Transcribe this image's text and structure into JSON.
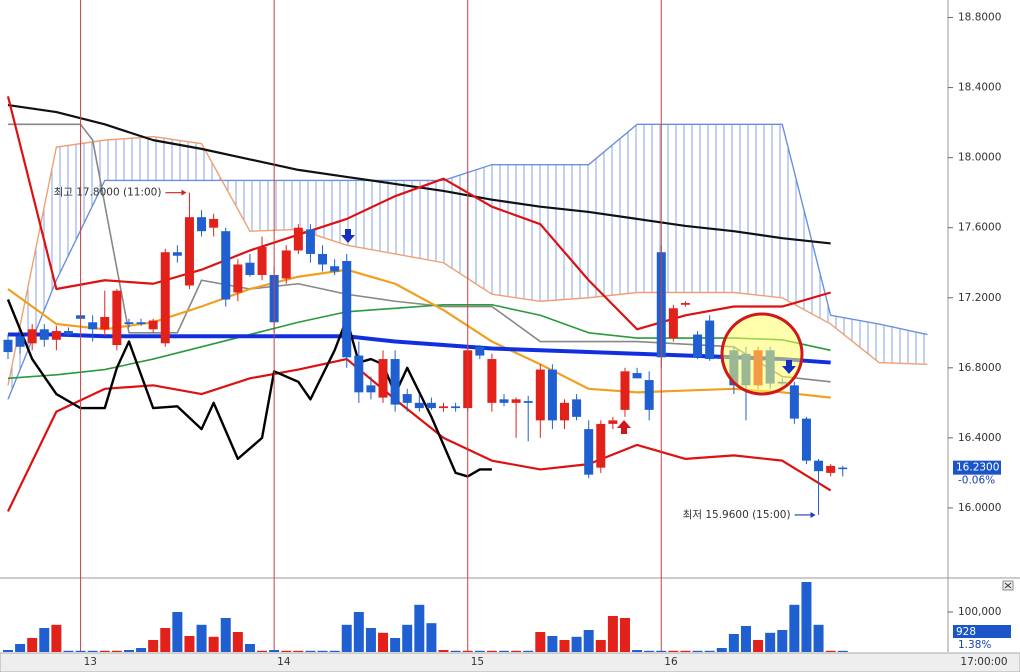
{
  "chart_data": [
    {
      "type": "candlestick",
      "xlim": [
        -0.66,
        77.7
      ],
      "ylim": [
        15.6,
        18.9
      ],
      "yticks": [
        {
          "value": 16.0,
          "label": "16.0000"
        },
        {
          "value": 16.4,
          "label": "16.4000"
        },
        {
          "value": 16.8,
          "label": "16.8000"
        },
        {
          "value": 17.2,
          "label": "17.2000"
        },
        {
          "value": 17.6,
          "label": "17.6000"
        },
        {
          "value": 18.0,
          "label": "18.0000"
        },
        {
          "value": 18.4,
          "label": "18.4000"
        },
        {
          "value": 18.8,
          "label": "18.8000"
        }
      ],
      "xticks": [
        {
          "value": 6,
          "label": "13"
        },
        {
          "value": 22,
          "label": "14"
        },
        {
          "value": 38,
          "label": "15"
        },
        {
          "value": 54,
          "label": "16"
        }
      ],
      "time_label": "17:00:00",
      "up_color": "#e3211b",
      "down_color": "#1f5fd0",
      "day_line_color": "#d04040",
      "x": [
        0,
        1,
        2,
        3,
        4,
        5,
        6,
        7,
        8,
        9,
        10,
        11,
        12,
        13,
        14,
        15,
        16,
        17,
        18,
        19,
        20,
        21,
        22,
        23,
        24,
        25,
        26,
        27,
        28,
        29,
        30,
        31,
        32,
        33,
        34,
        35,
        36,
        37,
        38,
        39,
        40,
        41,
        42,
        43,
        44,
        45,
        46,
        47,
        48,
        49,
        50,
        51,
        52,
        53,
        54,
        55,
        56,
        57,
        58,
        59,
        60,
        61,
        62,
        63,
        64,
        65,
        66,
        67,
        68,
        69
      ],
      "open": [
        16.96,
        16.98,
        16.94,
        17.02,
        16.96,
        17.01,
        17.1,
        17.06,
        17.02,
        16.93,
        17.06,
        17.06,
        17.02,
        16.94,
        17.46,
        17.27,
        17.66,
        17.6,
        17.58,
        17.23,
        17.4,
        17.33,
        17.33,
        17.31,
        17.47,
        17.59,
        17.45,
        17.38,
        17.41,
        16.87,
        16.7,
        16.63,
        16.85,
        16.65,
        16.6,
        16.6,
        16.57,
        16.58,
        16.57,
        16.92,
        16.6,
        16.62,
        16.6,
        16.61,
        16.5,
        16.79,
        16.5,
        16.62,
        16.45,
        16.23,
        16.48,
        16.56,
        16.77,
        16.73,
        17.46,
        16.97,
        17.16,
        16.99,
        17.07,
        16.86,
        16.9,
        16.88,
        16.7,
        16.9,
        16.72,
        16.7,
        16.51,
        16.27,
        16.2,
        16.23
      ],
      "high": [
        16.99,
        17.0,
        17.05,
        17.05,
        17.04,
        17.03,
        17.12,
        17.1,
        17.24,
        17.25,
        17.08,
        17.08,
        17.08,
        17.48,
        17.5,
        17.8,
        17.7,
        17.68,
        17.6,
        17.42,
        17.45,
        17.55,
        17.38,
        17.5,
        17.62,
        17.62,
        17.5,
        17.42,
        17.45,
        16.95,
        16.75,
        16.9,
        16.9,
        16.68,
        16.65,
        16.63,
        16.6,
        16.6,
        16.92,
        16.93,
        16.88,
        16.65,
        16.63,
        16.64,
        16.82,
        16.82,
        16.62,
        16.65,
        16.5,
        16.5,
        16.52,
        16.8,
        16.8,
        16.78,
        17.5,
        17.16,
        17.18,
        17.01,
        17.1,
        16.88,
        16.92,
        16.92,
        16.92,
        16.92,
        16.74,
        16.72,
        16.52,
        16.28,
        16.25,
        16.24
      ],
      "low": [
        16.85,
        16.88,
        16.9,
        16.92,
        16.9,
        16.98,
        17.07,
        16.95,
        16.98,
        16.9,
        17.03,
        17.04,
        17.0,
        16.92,
        17.4,
        17.25,
        17.55,
        17.55,
        17.15,
        17.18,
        17.32,
        17.3,
        17.0,
        17.28,
        17.45,
        17.4,
        17.35,
        17.33,
        16.8,
        16.6,
        16.62,
        16.6,
        16.55,
        16.55,
        16.55,
        16.56,
        16.55,
        16.55,
        16.55,
        16.85,
        16.55,
        16.58,
        16.4,
        16.38,
        16.4,
        16.45,
        16.45,
        16.5,
        16.17,
        16.2,
        16.45,
        16.52,
        16.74,
        16.5,
        16.8,
        16.95,
        17.15,
        16.85,
        16.84,
        16.83,
        16.65,
        16.5,
        16.68,
        16.68,
        16.7,
        16.48,
        16.25,
        15.96,
        16.18,
        16.18
      ],
      "close": [
        16.89,
        16.92,
        17.02,
        16.96,
        17.01,
        16.99,
        17.08,
        17.02,
        17.09,
        17.24,
        17.05,
        17.05,
        17.07,
        17.46,
        17.44,
        17.66,
        17.58,
        17.65,
        17.19,
        17.39,
        17.33,
        17.49,
        17.06,
        17.47,
        17.6,
        17.45,
        17.39,
        17.35,
        16.86,
        16.66,
        16.66,
        16.85,
        16.59,
        16.6,
        16.57,
        16.57,
        16.58,
        16.57,
        16.9,
        16.87,
        16.85,
        16.6,
        16.62,
        16.6,
        16.79,
        16.5,
        16.6,
        16.52,
        16.19,
        16.48,
        16.5,
        16.78,
        16.74,
        16.56,
        16.86,
        17.14,
        17.17,
        16.86,
        16.85,
        16.85,
        16.7,
        16.7,
        16.9,
        16.71,
        16.71,
        16.51,
        16.27,
        16.21,
        16.24,
        16.23
      ],
      "cloud": {
        "color": "#6a8fe0",
        "x": [
          0,
          4,
          8,
          12,
          16,
          20,
          24,
          28,
          32,
          36,
          40,
          44,
          48,
          52,
          56,
          60,
          64,
          68,
          72,
          76
        ],
        "span_a": [
          16.62,
          17.3,
          17.87,
          17.87,
          17.87,
          17.87,
          17.87,
          17.87,
          17.87,
          17.87,
          17.96,
          17.96,
          17.96,
          18.19,
          18.19,
          18.19,
          18.19,
          17.1,
          17.05,
          16.99
        ],
        "span_b": [
          16.7,
          18.06,
          18.1,
          18.12,
          18.08,
          17.58,
          17.59,
          17.5,
          17.45,
          17.4,
          17.22,
          17.18,
          17.2,
          17.23,
          17.23,
          17.23,
          17.2,
          17.05,
          16.83,
          16.82
        ],
        "span_a_color": "#6a8fe0",
        "span_b_color": "#f0a070"
      },
      "lines": [
        {
          "color": "#111111",
          "width": 2.2,
          "x": [
            0,
            4,
            8,
            12,
            16,
            20,
            24,
            28,
            32,
            36,
            40,
            44,
            48,
            52,
            56,
            60,
            64,
            68
          ],
          "values": [
            18.3,
            18.26,
            18.19,
            18.1,
            18.05,
            17.99,
            17.93,
            17.89,
            17.85,
            17.81,
            17.76,
            17.72,
            17.69,
            17.65,
            17.61,
            17.58,
            17.54,
            17.51
          ]
        },
        {
          "color": "#888888",
          "width": 1.6,
          "x": [
            0,
            6,
            7,
            10,
            14,
            16,
            20,
            24,
            28,
            32,
            36,
            40,
            42,
            44,
            52,
            60,
            64,
            68
          ],
          "values": [
            18.19,
            18.19,
            18.1,
            17.0,
            17.0,
            17.3,
            17.25,
            17.28,
            17.22,
            17.18,
            17.15,
            17.15,
            17.05,
            16.95,
            16.95,
            16.92,
            16.75,
            16.72
          ]
        },
        {
          "color": "#2a9a3a",
          "width": 1.6,
          "x": [
            0,
            4,
            8,
            12,
            16,
            20,
            24,
            28,
            32,
            36,
            40,
            44,
            48,
            52,
            56,
            60,
            64,
            68
          ],
          "values": [
            16.74,
            16.76,
            16.79,
            16.85,
            16.92,
            16.99,
            17.06,
            17.12,
            17.14,
            17.16,
            17.16,
            17.1,
            17.0,
            16.97,
            16.97,
            16.97,
            16.96,
            16.9
          ]
        },
        {
          "color": "#f0a020",
          "width": 2.2,
          "x": [
            0,
            4,
            8,
            12,
            16,
            20,
            24,
            28,
            32,
            36,
            40,
            44,
            48,
            52,
            56,
            60,
            64,
            68
          ],
          "values": [
            17.25,
            17.05,
            17.02,
            17.06,
            17.15,
            17.25,
            17.32,
            17.36,
            17.28,
            17.13,
            16.95,
            16.82,
            16.68,
            16.66,
            16.67,
            16.68,
            16.66,
            16.63
          ]
        },
        {
          "color": "#dd1111",
          "width": 2.2,
          "x": [
            0,
            4,
            8,
            12,
            16,
            20,
            24,
            28,
            32,
            36,
            40,
            44,
            48,
            52,
            56,
            60,
            64,
            68
          ],
          "values": [
            18.35,
            17.25,
            17.3,
            17.28,
            17.36,
            17.47,
            17.56,
            17.65,
            17.78,
            17.88,
            17.72,
            17.62,
            17.3,
            17.02,
            17.1,
            17.15,
            17.15,
            17.23
          ]
        },
        {
          "color": "#dd1111",
          "width": 2.2,
          "x": [
            0,
            4,
            8,
            12,
            16,
            20,
            24,
            28,
            32,
            36,
            40,
            44,
            48,
            52,
            56,
            60,
            64,
            68
          ],
          "values": [
            15.98,
            16.55,
            16.68,
            16.7,
            16.65,
            16.74,
            16.79,
            16.85,
            16.62,
            16.4,
            16.27,
            16.22,
            16.25,
            16.36,
            16.28,
            16.3,
            16.27,
            16.1
          ]
        },
        {
          "color": "#1030e0",
          "width": 4,
          "x": [
            0,
            4,
            8,
            12,
            16,
            20,
            24,
            28,
            32,
            36,
            40,
            44,
            48,
            52,
            56,
            60,
            64,
            68
          ],
          "values": [
            16.99,
            16.99,
            16.98,
            16.98,
            16.98,
            16.98,
            16.98,
            16.98,
            16.95,
            16.93,
            16.91,
            16.9,
            16.89,
            16.88,
            16.87,
            16.86,
            16.85,
            16.83
          ]
        },
        {
          "color": "#000000",
          "width": 2.4,
          "x": [
            0,
            2,
            4,
            6,
            8,
            9,
            10,
            12,
            14,
            16,
            17,
            19,
            21,
            22,
            24,
            25,
            27,
            28,
            29,
            30,
            31,
            32,
            33,
            35,
            37,
            38,
            39,
            40
          ],
          "values": [
            17.19,
            16.85,
            16.65,
            16.57,
            16.57,
            16.8,
            16.95,
            16.57,
            16.58,
            16.45,
            16.6,
            16.28,
            16.4,
            16.78,
            16.72,
            16.62,
            16.9,
            17.08,
            16.83,
            16.85,
            16.82,
            16.65,
            16.8,
            16.52,
            16.2,
            16.18,
            16.22,
            16.22
          ]
        }
      ],
      "annotations": [
        {
          "text": "최고 17.8000 (11:00)",
          "x": 15,
          "y": 17.8,
          "color": "#d02020"
        },
        {
          "text": "최저 15.9600 (15:00)",
          "x": 67,
          "y": 15.96,
          "color": "#1a3fb0"
        }
      ],
      "last": {
        "value": 16.23,
        "label": "16.2300",
        "change": "-0.06%"
      }
    },
    {
      "type": "bar",
      "ylim": [
        0,
        180000
      ],
      "yticks": [
        {
          "value": 100000,
          "label": "100,000"
        }
      ],
      "values": [
        5000,
        20000,
        35000,
        60000,
        68000,
        3000,
        3000,
        3000,
        3000,
        3000,
        5000,
        10000,
        30000,
        60000,
        100000,
        40000,
        68000,
        38000,
        85000,
        50000,
        20000,
        3000,
        5000,
        3000,
        3000,
        3000,
        3000,
        3000,
        68000,
        100000,
        60000,
        48000,
        35000,
        68000,
        118000,
        72000,
        5000,
        3000,
        3000,
        3000,
        3000,
        3000,
        3000,
        3000,
        50000,
        40000,
        30000,
        38000,
        55000,
        30000,
        90000,
        85000,
        5000,
        3000,
        3000,
        3000,
        3000,
        3000,
        3000,
        10000,
        45000,
        65000,
        30000,
        48000,
        55000,
        118000,
        175000,
        68000,
        3000,
        3000
      ],
      "last": {
        "value": 928,
        "change": "1.38%"
      }
    }
  ]
}
